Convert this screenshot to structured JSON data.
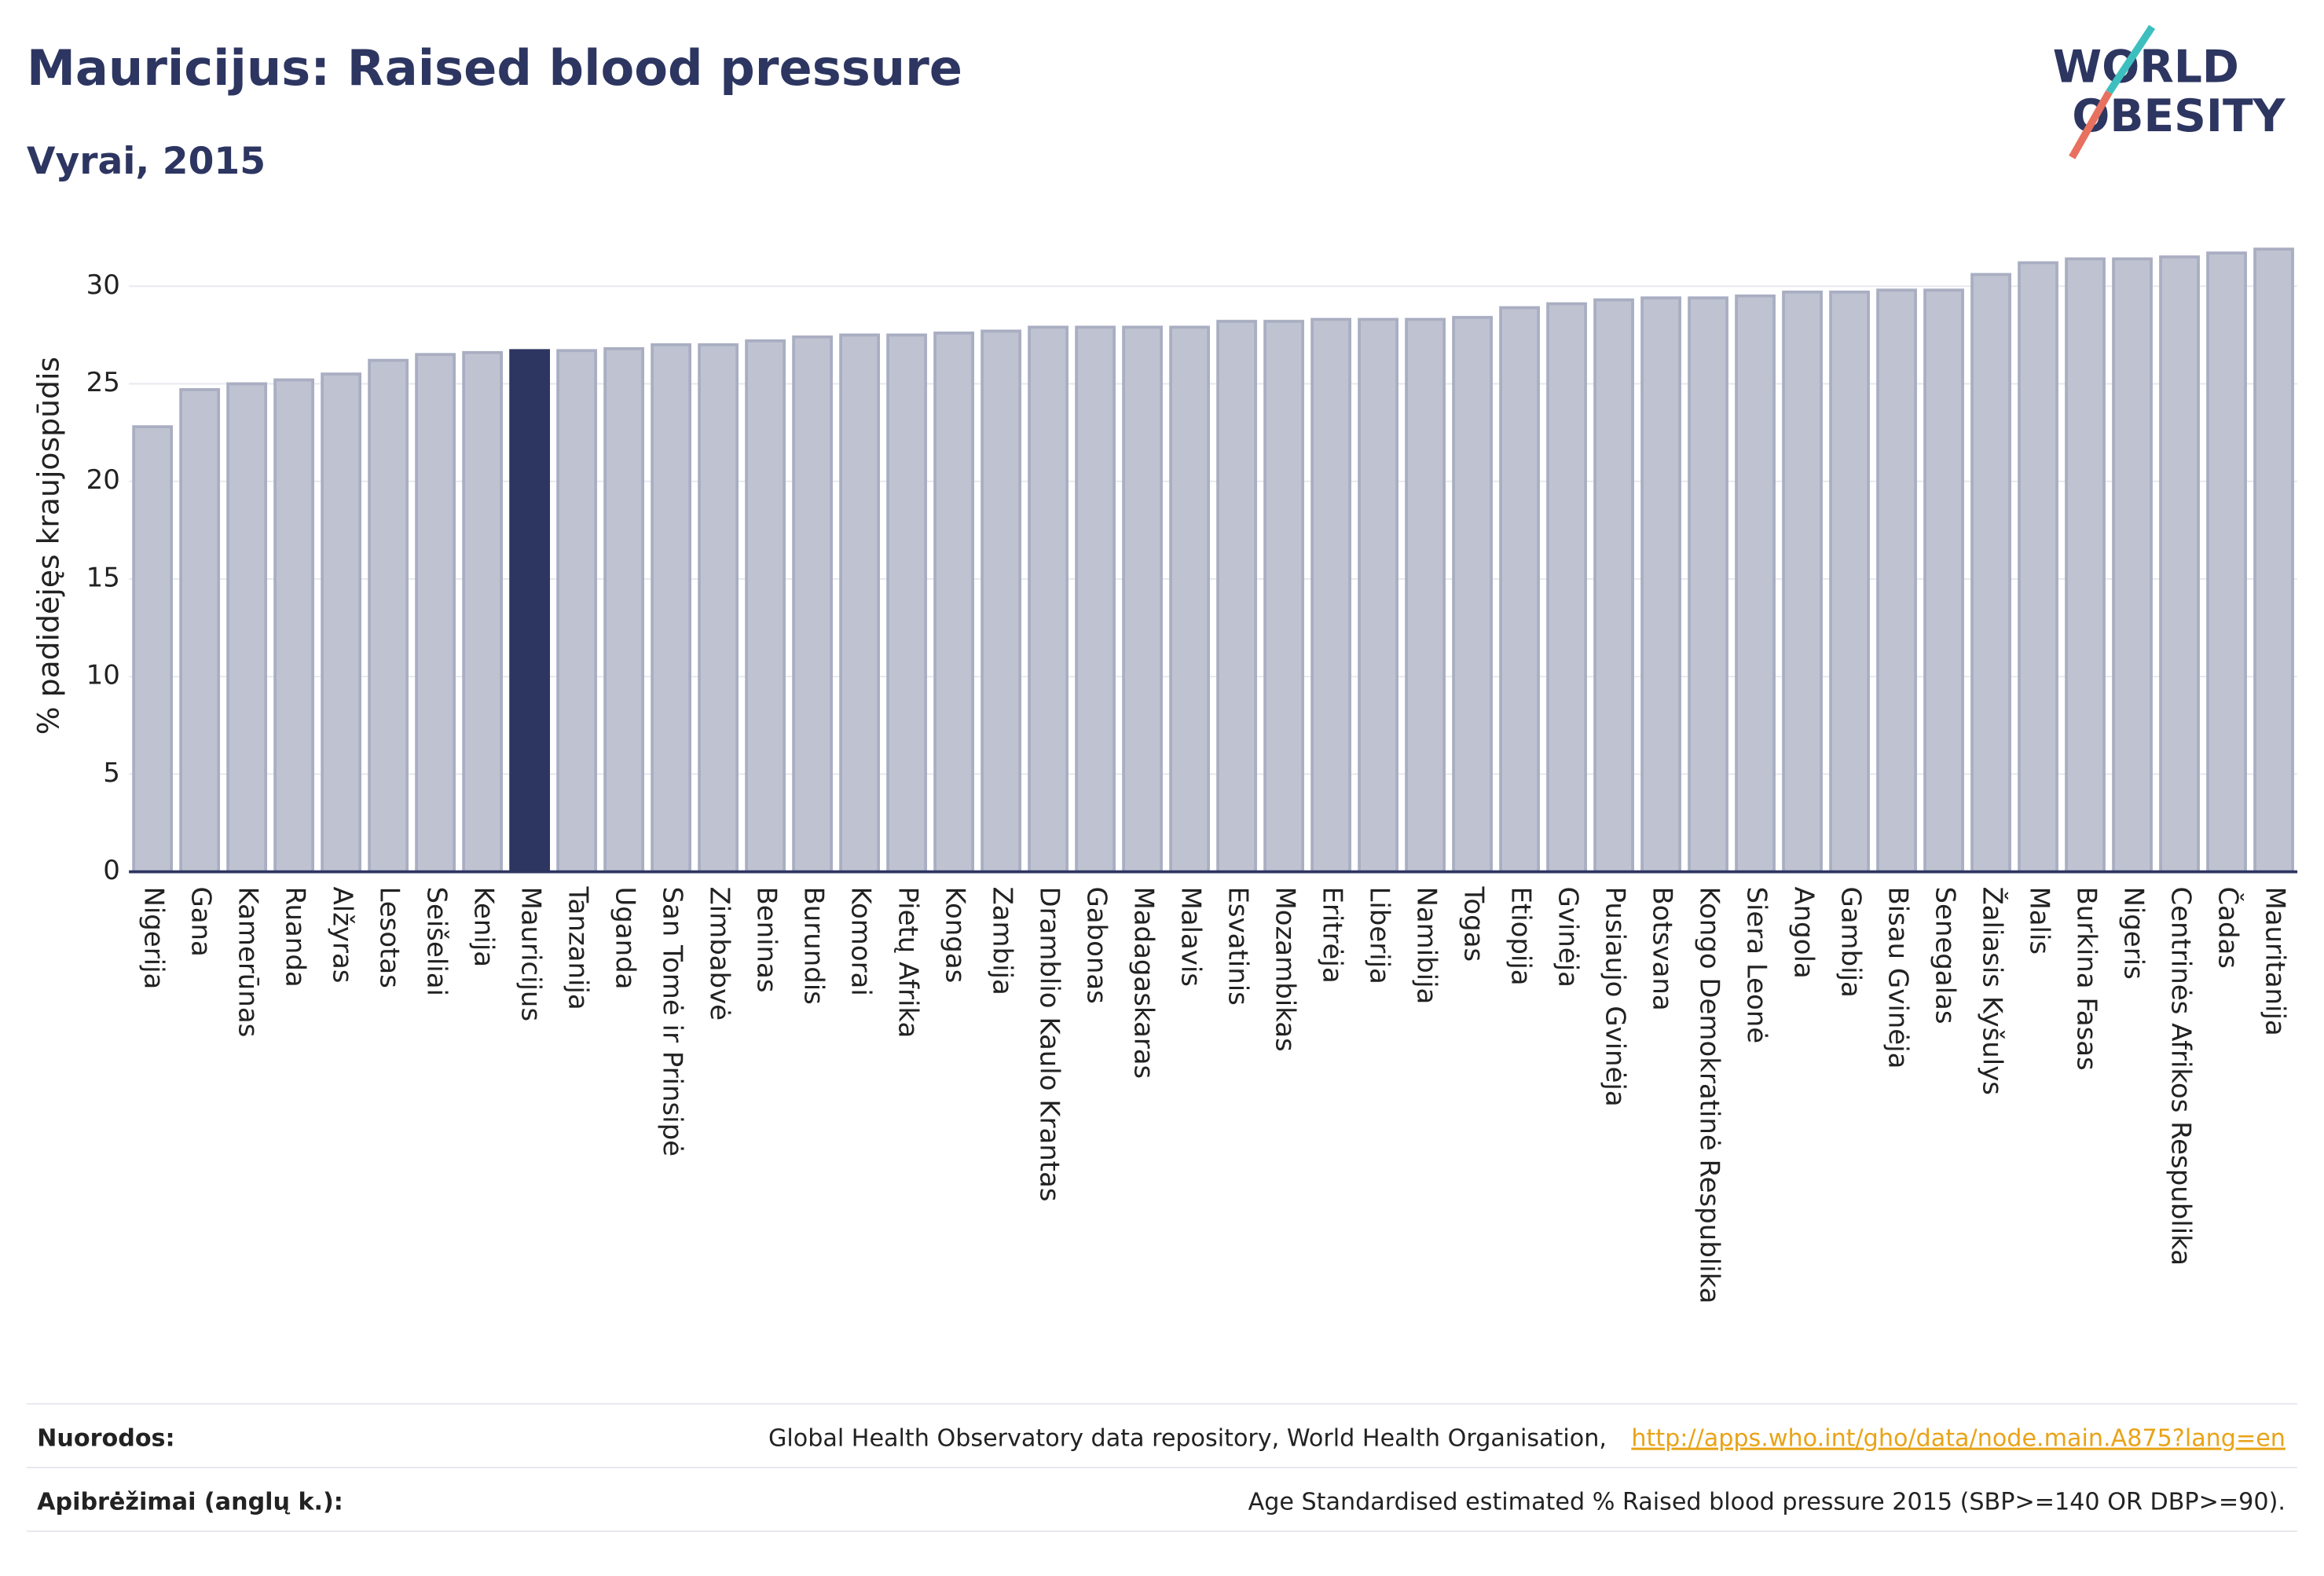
{
  "chart_data": {
    "type": "bar",
    "title": "Mauricijus: Raised blood pressure",
    "subtitle": "Vyrai, 2015",
    "y_label": "% padidėjęs kraujospūdis",
    "logo": [
      "WORLD",
      "OBESITY"
    ],
    "categories": [
      "Nigerija",
      "Gana",
      "Kamerūnas",
      "Ruanda",
      "Alžyras",
      "Lesotas",
      "Seišeliai",
      "Kenija",
      "Mauricijus",
      "Tanzanija",
      "Uganda",
      "San Tomė ir Prinsipė",
      "Zimbabvė",
      "Beninas",
      "Burundis",
      "Komorai",
      "Pietų Afrika",
      "Kongas",
      "Zambija",
      "Dramblio Kaulo Krantas",
      "Gabonas",
      "Madagaskaras",
      "Malavis",
      "Esvatinis",
      "Mozambikas",
      "Eritrėja",
      "Liberija",
      "Namibija",
      "Togas",
      "Etiopija",
      "Gvinėja",
      "Pusiaujo Gvinėja",
      "Botsvana",
      "Kongo Demokratinė Respublika",
      "Siera Leonė",
      "Angola",
      "Gambija",
      "Bisau Gvinėja",
      "Senegalas",
      "Žaliasis Kyšulys",
      "Malis",
      "Burkina Fasas",
      "Nigeris",
      "Centrinės Afrikos Respublika",
      "Čadas",
      "Mauritanija"
    ],
    "values": [
      22.8,
      24.7,
      25.0,
      25.2,
      25.5,
      26.2,
      26.5,
      26.6,
      26.7,
      26.7,
      26.8,
      27.0,
      27.0,
      27.2,
      27.4,
      27.5,
      27.5,
      27.6,
      27.7,
      27.9,
      27.9,
      27.9,
      27.9,
      28.2,
      28.2,
      28.3,
      28.3,
      28.3,
      28.4,
      28.9,
      29.1,
      29.3,
      29.4,
      29.4,
      29.5,
      29.7,
      29.7,
      29.8,
      29.8,
      30.6,
      31.2,
      31.4,
      31.4,
      31.5,
      31.7,
      31.9
    ],
    "color": "#bfc3d1",
    "highlight": "Mauricijus",
    "highlight_color": "#2d3561",
    "ylim": [
      0,
      32.5
    ],
    "yticks": [
      0,
      5,
      10,
      15,
      20,
      25,
      30
    ],
    "grid": true
  },
  "footer": {
    "sources_label": "Nuorodos:",
    "sources_text": "Global Health Observatory data repository, World Health Organisation,",
    "sources_link": "http://apps.who.int/gho/data/node.main.A875?lang=en",
    "definition_label": "Apibrėžimai (anglų k.):",
    "definition_text": "Age Standardised estimated % Raised blood pressure 2015 (SBP>=140 OR DBP>=90)."
  }
}
